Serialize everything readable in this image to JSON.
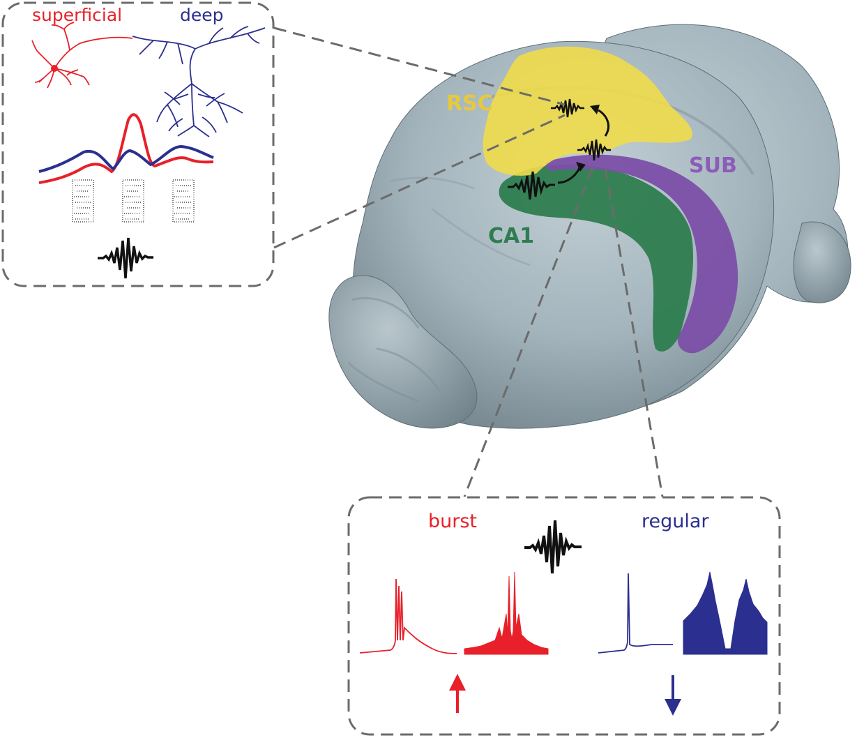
{
  "callouts": {
    "top_left": {
      "superficial_label": "superficial",
      "deep_label": "deep"
    },
    "bottom_right": {
      "burst_label": "burst",
      "regular_label": "regular"
    }
  },
  "regions": {
    "rsc": "RSC",
    "sub": "SUB",
    "ca1": "CA1"
  },
  "colors": {
    "superficial": "#e8202a",
    "deep": "#2b2f8f",
    "rsc": "#f0dc4a",
    "sub": "#7b4fa8",
    "ca1": "#2e7d4f",
    "brain": "#9fb0b8",
    "dash": "#6b6b6b"
  },
  "icons": {
    "increase": "up-arrow-icon",
    "decrease": "down-arrow-icon",
    "oscillation": "ripple-oscillation-icon"
  }
}
